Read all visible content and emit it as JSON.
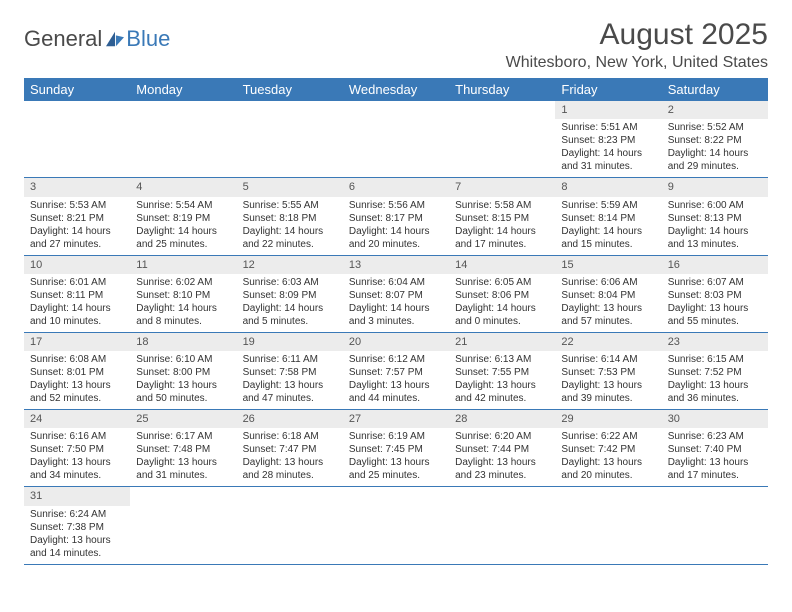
{
  "logo": {
    "text1": "General",
    "text2": "Blue"
  },
  "title": "August 2025",
  "location": "Whitesboro, New York, United States",
  "colors": {
    "header_bg": "#3a79b7",
    "header_text": "#ffffff",
    "daynum_bg": "#ececec",
    "border": "#3a79b7",
    "text": "#333333",
    "logo_gray": "#4a4a4a",
    "logo_blue": "#3a79b7",
    "page_bg": "#ffffff"
  },
  "typography": {
    "title_fontsize": 30,
    "location_fontsize": 16,
    "dow_fontsize": 13,
    "daynum_fontsize": 11,
    "body_fontsize": 10
  },
  "days_of_week": [
    "Sunday",
    "Monday",
    "Tuesday",
    "Wednesday",
    "Thursday",
    "Friday",
    "Saturday"
  ],
  "weeks": [
    [
      {
        "n": "",
        "sunrise": "",
        "sunset": "",
        "daylight": ""
      },
      {
        "n": "",
        "sunrise": "",
        "sunset": "",
        "daylight": ""
      },
      {
        "n": "",
        "sunrise": "",
        "sunset": "",
        "daylight": ""
      },
      {
        "n": "",
        "sunrise": "",
        "sunset": "",
        "daylight": ""
      },
      {
        "n": "",
        "sunrise": "",
        "sunset": "",
        "daylight": ""
      },
      {
        "n": "1",
        "sunrise": "Sunrise: 5:51 AM",
        "sunset": "Sunset: 8:23 PM",
        "daylight": "Daylight: 14 hours and 31 minutes."
      },
      {
        "n": "2",
        "sunrise": "Sunrise: 5:52 AM",
        "sunset": "Sunset: 8:22 PM",
        "daylight": "Daylight: 14 hours and 29 minutes."
      }
    ],
    [
      {
        "n": "3",
        "sunrise": "Sunrise: 5:53 AM",
        "sunset": "Sunset: 8:21 PM",
        "daylight": "Daylight: 14 hours and 27 minutes."
      },
      {
        "n": "4",
        "sunrise": "Sunrise: 5:54 AM",
        "sunset": "Sunset: 8:19 PM",
        "daylight": "Daylight: 14 hours and 25 minutes."
      },
      {
        "n": "5",
        "sunrise": "Sunrise: 5:55 AM",
        "sunset": "Sunset: 8:18 PM",
        "daylight": "Daylight: 14 hours and 22 minutes."
      },
      {
        "n": "6",
        "sunrise": "Sunrise: 5:56 AM",
        "sunset": "Sunset: 8:17 PM",
        "daylight": "Daylight: 14 hours and 20 minutes."
      },
      {
        "n": "7",
        "sunrise": "Sunrise: 5:58 AM",
        "sunset": "Sunset: 8:15 PM",
        "daylight": "Daylight: 14 hours and 17 minutes."
      },
      {
        "n": "8",
        "sunrise": "Sunrise: 5:59 AM",
        "sunset": "Sunset: 8:14 PM",
        "daylight": "Daylight: 14 hours and 15 minutes."
      },
      {
        "n": "9",
        "sunrise": "Sunrise: 6:00 AM",
        "sunset": "Sunset: 8:13 PM",
        "daylight": "Daylight: 14 hours and 13 minutes."
      }
    ],
    [
      {
        "n": "10",
        "sunrise": "Sunrise: 6:01 AM",
        "sunset": "Sunset: 8:11 PM",
        "daylight": "Daylight: 14 hours and 10 minutes."
      },
      {
        "n": "11",
        "sunrise": "Sunrise: 6:02 AM",
        "sunset": "Sunset: 8:10 PM",
        "daylight": "Daylight: 14 hours and 8 minutes."
      },
      {
        "n": "12",
        "sunrise": "Sunrise: 6:03 AM",
        "sunset": "Sunset: 8:09 PM",
        "daylight": "Daylight: 14 hours and 5 minutes."
      },
      {
        "n": "13",
        "sunrise": "Sunrise: 6:04 AM",
        "sunset": "Sunset: 8:07 PM",
        "daylight": "Daylight: 14 hours and 3 minutes."
      },
      {
        "n": "14",
        "sunrise": "Sunrise: 6:05 AM",
        "sunset": "Sunset: 8:06 PM",
        "daylight": "Daylight: 14 hours and 0 minutes."
      },
      {
        "n": "15",
        "sunrise": "Sunrise: 6:06 AM",
        "sunset": "Sunset: 8:04 PM",
        "daylight": "Daylight: 13 hours and 57 minutes."
      },
      {
        "n": "16",
        "sunrise": "Sunrise: 6:07 AM",
        "sunset": "Sunset: 8:03 PM",
        "daylight": "Daylight: 13 hours and 55 minutes."
      }
    ],
    [
      {
        "n": "17",
        "sunrise": "Sunrise: 6:08 AM",
        "sunset": "Sunset: 8:01 PM",
        "daylight": "Daylight: 13 hours and 52 minutes."
      },
      {
        "n": "18",
        "sunrise": "Sunrise: 6:10 AM",
        "sunset": "Sunset: 8:00 PM",
        "daylight": "Daylight: 13 hours and 50 minutes."
      },
      {
        "n": "19",
        "sunrise": "Sunrise: 6:11 AM",
        "sunset": "Sunset: 7:58 PM",
        "daylight": "Daylight: 13 hours and 47 minutes."
      },
      {
        "n": "20",
        "sunrise": "Sunrise: 6:12 AM",
        "sunset": "Sunset: 7:57 PM",
        "daylight": "Daylight: 13 hours and 44 minutes."
      },
      {
        "n": "21",
        "sunrise": "Sunrise: 6:13 AM",
        "sunset": "Sunset: 7:55 PM",
        "daylight": "Daylight: 13 hours and 42 minutes."
      },
      {
        "n": "22",
        "sunrise": "Sunrise: 6:14 AM",
        "sunset": "Sunset: 7:53 PM",
        "daylight": "Daylight: 13 hours and 39 minutes."
      },
      {
        "n": "23",
        "sunrise": "Sunrise: 6:15 AM",
        "sunset": "Sunset: 7:52 PM",
        "daylight": "Daylight: 13 hours and 36 minutes."
      }
    ],
    [
      {
        "n": "24",
        "sunrise": "Sunrise: 6:16 AM",
        "sunset": "Sunset: 7:50 PM",
        "daylight": "Daylight: 13 hours and 34 minutes."
      },
      {
        "n": "25",
        "sunrise": "Sunrise: 6:17 AM",
        "sunset": "Sunset: 7:48 PM",
        "daylight": "Daylight: 13 hours and 31 minutes."
      },
      {
        "n": "26",
        "sunrise": "Sunrise: 6:18 AM",
        "sunset": "Sunset: 7:47 PM",
        "daylight": "Daylight: 13 hours and 28 minutes."
      },
      {
        "n": "27",
        "sunrise": "Sunrise: 6:19 AM",
        "sunset": "Sunset: 7:45 PM",
        "daylight": "Daylight: 13 hours and 25 minutes."
      },
      {
        "n": "28",
        "sunrise": "Sunrise: 6:20 AM",
        "sunset": "Sunset: 7:44 PM",
        "daylight": "Daylight: 13 hours and 23 minutes."
      },
      {
        "n": "29",
        "sunrise": "Sunrise: 6:22 AM",
        "sunset": "Sunset: 7:42 PM",
        "daylight": "Daylight: 13 hours and 20 minutes."
      },
      {
        "n": "30",
        "sunrise": "Sunrise: 6:23 AM",
        "sunset": "Sunset: 7:40 PM",
        "daylight": "Daylight: 13 hours and 17 minutes."
      }
    ],
    [
      {
        "n": "31",
        "sunrise": "Sunrise: 6:24 AM",
        "sunset": "Sunset: 7:38 PM",
        "daylight": "Daylight: 13 hours and 14 minutes."
      },
      {
        "n": "",
        "sunrise": "",
        "sunset": "",
        "daylight": ""
      },
      {
        "n": "",
        "sunrise": "",
        "sunset": "",
        "daylight": ""
      },
      {
        "n": "",
        "sunrise": "",
        "sunset": "",
        "daylight": ""
      },
      {
        "n": "",
        "sunrise": "",
        "sunset": "",
        "daylight": ""
      },
      {
        "n": "",
        "sunrise": "",
        "sunset": "",
        "daylight": ""
      },
      {
        "n": "",
        "sunrise": "",
        "sunset": "",
        "daylight": ""
      }
    ]
  ]
}
